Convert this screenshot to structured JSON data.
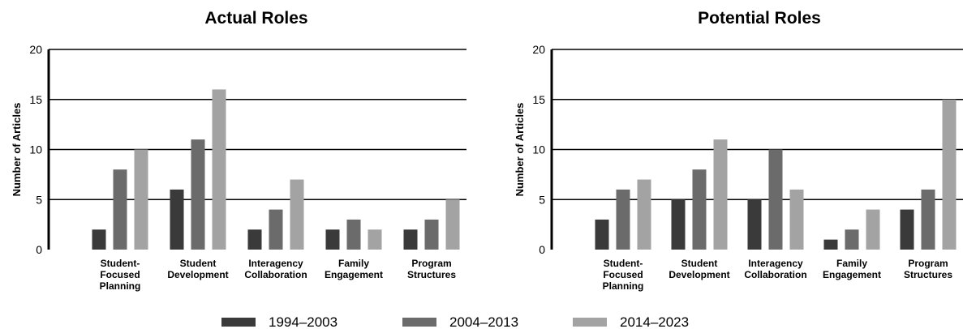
{
  "chart_data": [
    {
      "type": "bar",
      "title": "Actual Roles",
      "ylabel": "Number of Articles",
      "xlabel": "",
      "ylim": [
        0,
        20
      ],
      "yticks": [
        0,
        5,
        10,
        15,
        20
      ],
      "grid": "horizontal",
      "categories": [
        [
          "Student-",
          "Focused",
          "Planning"
        ],
        [
          "Student",
          "Development"
        ],
        [
          "Interagency",
          "Collaboration"
        ],
        [
          "Family",
          "Engagement"
        ],
        [
          "Program",
          "Structures"
        ]
      ],
      "series": [
        {
          "name": "1994–2003",
          "values": [
            2,
            6,
            2,
            2,
            2
          ]
        },
        {
          "name": "2004–2013",
          "values": [
            8,
            11,
            4,
            3,
            3
          ]
        },
        {
          "name": "2014–2023",
          "values": [
            10,
            16,
            7,
            2,
            5
          ]
        }
      ]
    },
    {
      "type": "bar",
      "title": "Potential Roles",
      "ylabel": "Number of Articles",
      "xlabel": "",
      "ylim": [
        0,
        20
      ],
      "yticks": [
        0,
        5,
        10,
        15,
        20
      ],
      "grid": "horizontal",
      "categories": [
        [
          "Student-",
          "Focused",
          "Planning"
        ],
        [
          "Student",
          "Development"
        ],
        [
          "Interagency",
          "Collaboration"
        ],
        [
          "Family",
          "Engagement"
        ],
        [
          "Program",
          "Structures"
        ]
      ],
      "series": [
        {
          "name": "1994–2003",
          "values": [
            3,
            5,
            5,
            1,
            4
          ]
        },
        {
          "name": "2004–2013",
          "values": [
            6,
            8,
            10,
            2,
            6
          ]
        },
        {
          "name": "2014–2023",
          "values": [
            7,
            11,
            6,
            4,
            15
          ]
        }
      ]
    }
  ],
  "legend": {
    "placement": "bottom-center",
    "items": [
      {
        "label": "1994–2003",
        "color": "#3a3a3a"
      },
      {
        "label": "2004–2013",
        "color": "#6b6b6b"
      },
      {
        "label": "2014–2023",
        "color": "#a3a3a3"
      }
    ]
  }
}
